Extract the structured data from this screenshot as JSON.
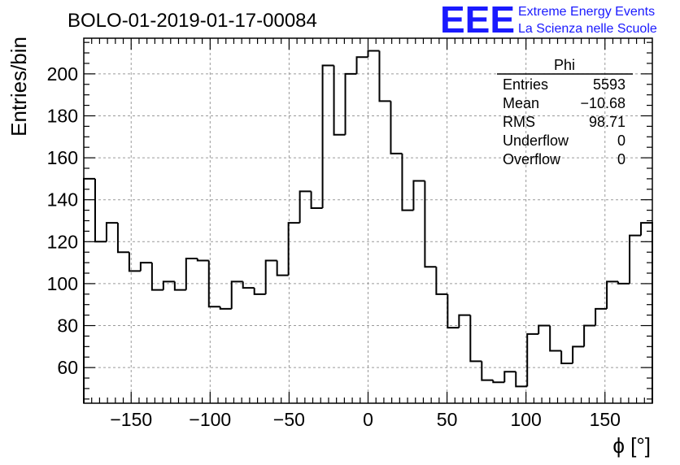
{
  "header": {
    "run_title": "BOLO-01-2019-01-17-00084",
    "logo_text": "EEE",
    "logo_line1": "Extreme Energy Events",
    "logo_line2": "La Scienza nelle Scuole",
    "logo_color": "#1a1aff"
  },
  "stats_box": {
    "name": "Phi",
    "rows": [
      {
        "label": "Entries",
        "value": "5593"
      },
      {
        "label": "Mean",
        "value": "−10.68"
      },
      {
        "label": "RMS",
        "value": "98.71"
      },
      {
        "label": "Underflow",
        "value": "0"
      },
      {
        "label": "Overflow",
        "value": "0"
      }
    ]
  },
  "chart_data": {
    "type": "bar",
    "style": "step-histogram",
    "xlabel": "ϕ [°]",
    "ylabel": "Entries/bin",
    "xlim": [
      -180,
      180
    ],
    "ylim": [
      43,
      217
    ],
    "bin_width": 7.2,
    "x_ticks": [
      -150,
      -100,
      -50,
      0,
      50,
      100,
      150
    ],
    "x_tick_labels": [
      "−150",
      "−100",
      "−50",
      "0",
      "50",
      "100",
      "150"
    ],
    "y_ticks": [
      60,
      80,
      100,
      120,
      140,
      160,
      180,
      200
    ],
    "y_tick_labels": [
      "60",
      "80",
      "100",
      "120",
      "140",
      "160",
      "180",
      "200"
    ],
    "grid": true,
    "line_color": "#000000",
    "grid_color": "#9a9a9a",
    "values": [
      150,
      120,
      129,
      115,
      106,
      110,
      97,
      101,
      97,
      112,
      111,
      89,
      88,
      101,
      98,
      95,
      111,
      104,
      129,
      144,
      136,
      204,
      171,
      200,
      208,
      211,
      187,
      162,
      135,
      149,
      108,
      95,
      79,
      85,
      63,
      54,
      53,
      58,
      51,
      76,
      80,
      68,
      62,
      70,
      80,
      88,
      101,
      100,
      123,
      129
    ]
  }
}
